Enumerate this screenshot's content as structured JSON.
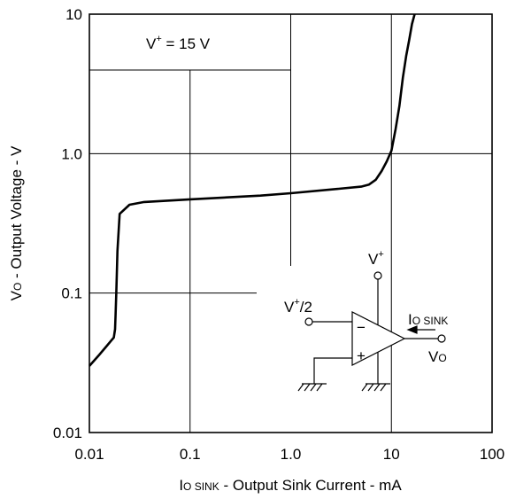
{
  "chart_data": {
    "type": "line",
    "x_scale": "log",
    "y_scale": "log",
    "xlim": [
      0.01,
      100
    ],
    "ylim": [
      0.01,
      10
    ],
    "grid": true,
    "x_ticks": [
      "0.01",
      "0.1",
      "1.0",
      "10",
      "100"
    ],
    "y_ticks": [
      "0.01",
      "0.1",
      "1.0",
      "10"
    ],
    "xlabel": {
      "main": "I",
      "sub": "O SINK",
      "rest": " - Output Sink Current - mA"
    },
    "ylabel": {
      "main": "V",
      "sub": "O",
      "rest": " - Output Voltage - V"
    },
    "annotation": {
      "base": "V",
      "sup": "+",
      "rest": " = 15 V"
    },
    "series": [
      {
        "x": [
          0.01,
          0.0125,
          0.015,
          0.0175,
          0.018,
          0.0182,
          0.0185,
          0.019,
          0.02,
          0.025,
          0.035,
          0.1,
          0.5,
          1.0,
          3.0,
          5.0,
          6.0,
          7.0,
          8.0,
          9.0,
          10.0,
          11.0,
          12.0,
          13.0,
          14.0,
          15.0,
          16.0,
          17.0
        ],
        "y": [
          0.03,
          0.036,
          0.042,
          0.048,
          0.055,
          0.07,
          0.1,
          0.2,
          0.37,
          0.43,
          0.45,
          0.47,
          0.5,
          0.52,
          0.56,
          0.58,
          0.6,
          0.65,
          0.75,
          0.88,
          1.05,
          1.5,
          2.2,
          3.5,
          5.0,
          6.5,
          8.5,
          10.0
        ]
      }
    ]
  },
  "inset": {
    "vplus": {
      "base": "V",
      "sup": "+"
    },
    "vhalf": {
      "base": "V",
      "sup": "+",
      "rest": "/2"
    },
    "minus": "−",
    "plus": "+",
    "iosink": {
      "main": "I",
      "sub": "O SINK"
    },
    "vo": {
      "main": "V",
      "sub": "O"
    }
  }
}
